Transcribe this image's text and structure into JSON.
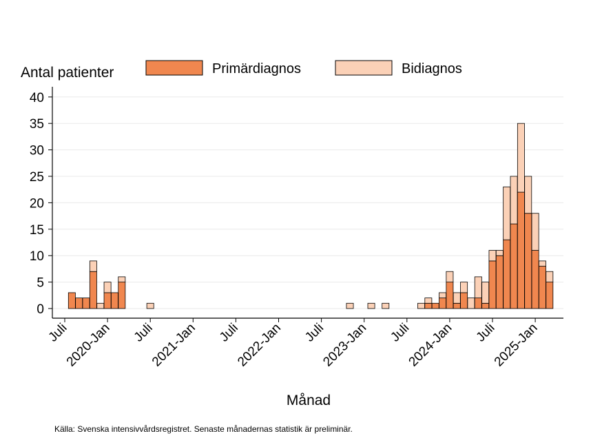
{
  "chart_data": {
    "type": "bar",
    "stacked": true,
    "ylabel": "Antal patienter",
    "xlabel": "Månad",
    "ylim": [
      0,
      42
    ],
    "yticks": [
      0,
      5,
      10,
      15,
      20,
      25,
      30,
      35,
      40
    ],
    "x_start": "2019-07",
    "xticks": [
      {
        "label": "Juli",
        "index": 0
      },
      {
        "label": "2020-Jan",
        "index": 6
      },
      {
        "label": "Juli",
        "index": 12
      },
      {
        "label": "2021-Jan",
        "index": 18
      },
      {
        "label": "Juli",
        "index": 24
      },
      {
        "label": "2022-Jan",
        "index": 30
      },
      {
        "label": "Juli",
        "index": 36
      },
      {
        "label": "2023-Jan",
        "index": 42
      },
      {
        "label": "Juli",
        "index": 48
      },
      {
        "label": "2024-Jan",
        "index": 54
      },
      {
        "label": "Juli",
        "index": 60
      },
      {
        "label": "2025-Jan",
        "index": 66
      }
    ],
    "legend": [
      {
        "name": "Primärdiagnos",
        "color": "#f0874f"
      },
      {
        "name": "Bidiagnos",
        "color": "#fbd1b7"
      }
    ],
    "series": [
      {
        "name": "Primärdiagnos",
        "color": "#f0874f",
        "values": [
          0,
          3,
          2,
          2,
          7,
          0,
          3,
          3,
          5,
          0,
          0,
          0,
          0,
          0,
          0,
          0,
          0,
          0,
          0,
          0,
          0,
          0,
          0,
          0,
          0,
          0,
          0,
          0,
          0,
          0,
          0,
          0,
          0,
          0,
          0,
          0,
          0,
          0,
          0,
          0,
          0,
          0,
          0,
          0,
          0,
          0,
          0,
          0,
          0,
          0,
          0,
          1,
          1,
          2,
          5,
          1,
          3,
          0,
          2,
          1,
          9,
          10,
          13,
          16,
          22,
          18,
          11,
          8,
          5
        ]
      },
      {
        "name": "Bidiagnos",
        "color": "#fbd1b7",
        "values": [
          0,
          0,
          0,
          0,
          2,
          1,
          2,
          0,
          1,
          0,
          0,
          0,
          1,
          0,
          0,
          0,
          0,
          0,
          0,
          0,
          0,
          0,
          0,
          0,
          0,
          0,
          0,
          0,
          0,
          0,
          0,
          0,
          0,
          0,
          0,
          0,
          0,
          0,
          0,
          0,
          1,
          0,
          0,
          1,
          0,
          1,
          0,
          0,
          0,
          0,
          1,
          1,
          0,
          1,
          2,
          2,
          2,
          2,
          4,
          4,
          2,
          1,
          10,
          9,
          13,
          7,
          7,
          1,
          2
        ]
      }
    ]
  },
  "source_text": "Källa: Svenska intensivvårdsregistret. Senaste månadernas statistik är preliminär."
}
